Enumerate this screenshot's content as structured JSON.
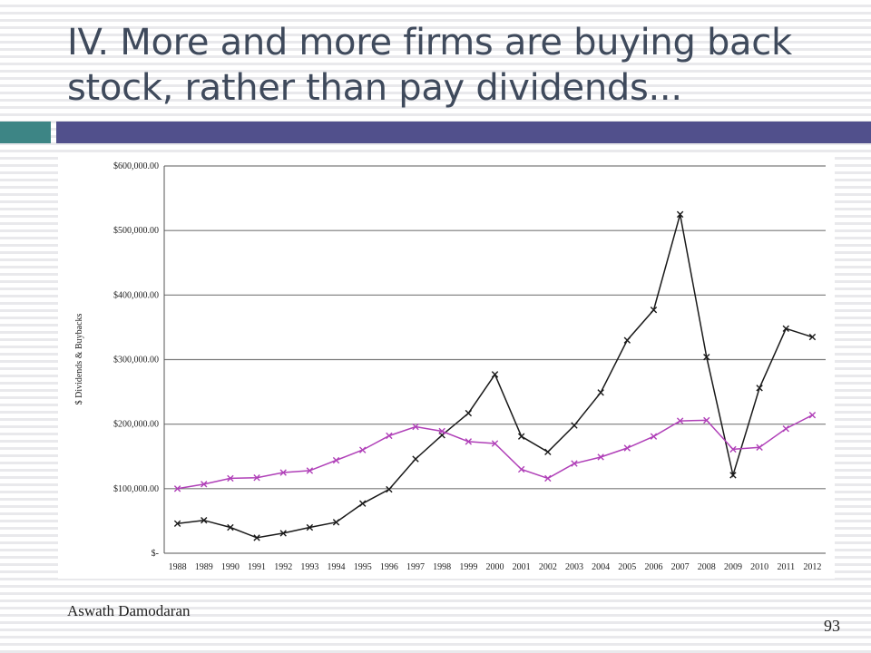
{
  "slide": {
    "title_line1": "IV. More and more firms are buying back",
    "title_line2": "stock, rather than pay dividends...",
    "author": "Aswath Damodaran",
    "page_number": "93"
  },
  "colors": {
    "title_text": "#3f4a5c",
    "accent_teal": "#3d8585",
    "accent_indigo": "#51508c",
    "series_buybacks": "#1a1a1a",
    "series_dividends": "#b040b8"
  },
  "chart_data": {
    "type": "line",
    "title": "",
    "xlabel": "",
    "ylabel": "$ Dividends & Buybacks",
    "x": [
      "1988",
      "1989",
      "1990",
      "1991",
      "1992",
      "1993",
      "1994",
      "1995",
      "1996",
      "1997",
      "1998",
      "1999",
      "2000",
      "2001",
      "2002",
      "2003",
      "2004",
      "2005",
      "2006",
      "2007",
      "2008",
      "2009",
      "2010",
      "2011",
      "2012"
    ],
    "ylim": [
      0,
      600000
    ],
    "y_ticks": [
      0,
      100000,
      200000,
      300000,
      400000,
      500000,
      600000
    ],
    "y_tick_labels": [
      "$-",
      "$100,000.00",
      "$200,000.00",
      "$300,000.00",
      "$400,000.00",
      "$500,000.00",
      "$600,000.00"
    ],
    "grid": "horizontal",
    "legend": "none",
    "marker": "x",
    "series": [
      {
        "color": "#1a1a1a",
        "values": [
          46000,
          51000,
          40000,
          24000,
          31000,
          40000,
          48000,
          77000,
          99000,
          146000,
          183000,
          217000,
          277000,
          181000,
          157000,
          198000,
          249000,
          330000,
          377000,
          525000,
          304000,
          121000,
          256000,
          348000,
          335000
        ]
      },
      {
        "color": "#b040b8",
        "values": [
          100000,
          107000,
          116000,
          117000,
          125000,
          128000,
          144000,
          160000,
          182000,
          196000,
          189000,
          173000,
          170000,
          130000,
          116000,
          139000,
          149000,
          163000,
          181000,
          205000,
          206000,
          161000,
          164000,
          193000,
          214000
        ]
      }
    ]
  }
}
